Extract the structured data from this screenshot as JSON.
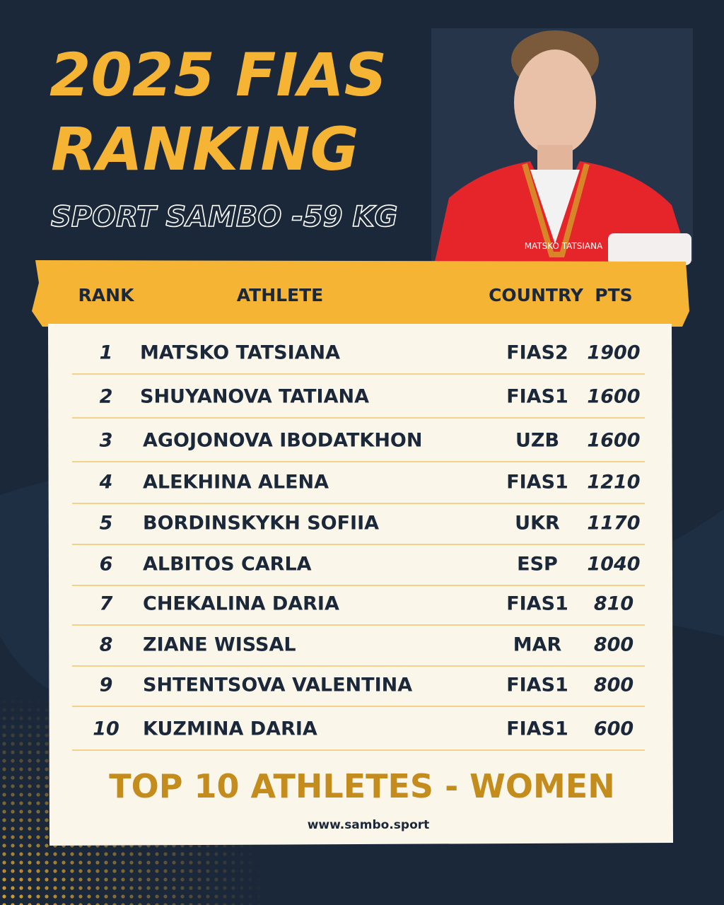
{
  "header": {
    "title_lines": [
      "2025 FIAS",
      "RANKING"
    ],
    "subtitle": "SPORT SAMBO -59 KG",
    "photo_caption": "MATSKO TATSIANA"
  },
  "table": {
    "columns": [
      "RANK",
      "ATHLETE",
      "COUNTRY",
      "PTS"
    ],
    "rows": [
      [
        1,
        "MATSKO TATSIANA",
        "FIAS2",
        1900
      ],
      [
        2,
        "SHUYANOVA TATIANA",
        "FIAS1",
        1600
      ],
      [
        3,
        "AGOJONOVA IBODATKHON",
        "UZB",
        1600
      ],
      [
        4,
        "ALEKHINA ALENA",
        "FIAS1",
        1210
      ],
      [
        5,
        "BORDINSKYKH SOFIIA",
        "UKR",
        1170
      ],
      [
        6,
        "ALBITOS CARLA",
        "ESP",
        1040
      ],
      [
        7,
        "CHEKALINA DARIA",
        "FIAS1",
        810
      ],
      [
        8,
        "ZIANE WISSAL",
        "MAR",
        800
      ],
      [
        9,
        "SHTENTSOVA VALENTINA",
        "FIAS1",
        800
      ],
      [
        10,
        "KUZMINA DARIA",
        "FIAS1",
        600
      ]
    ]
  },
  "footer": {
    "tagline": "TOP 10 ATHLETES - WOMEN",
    "website": "www.sambo.sport"
  }
}
